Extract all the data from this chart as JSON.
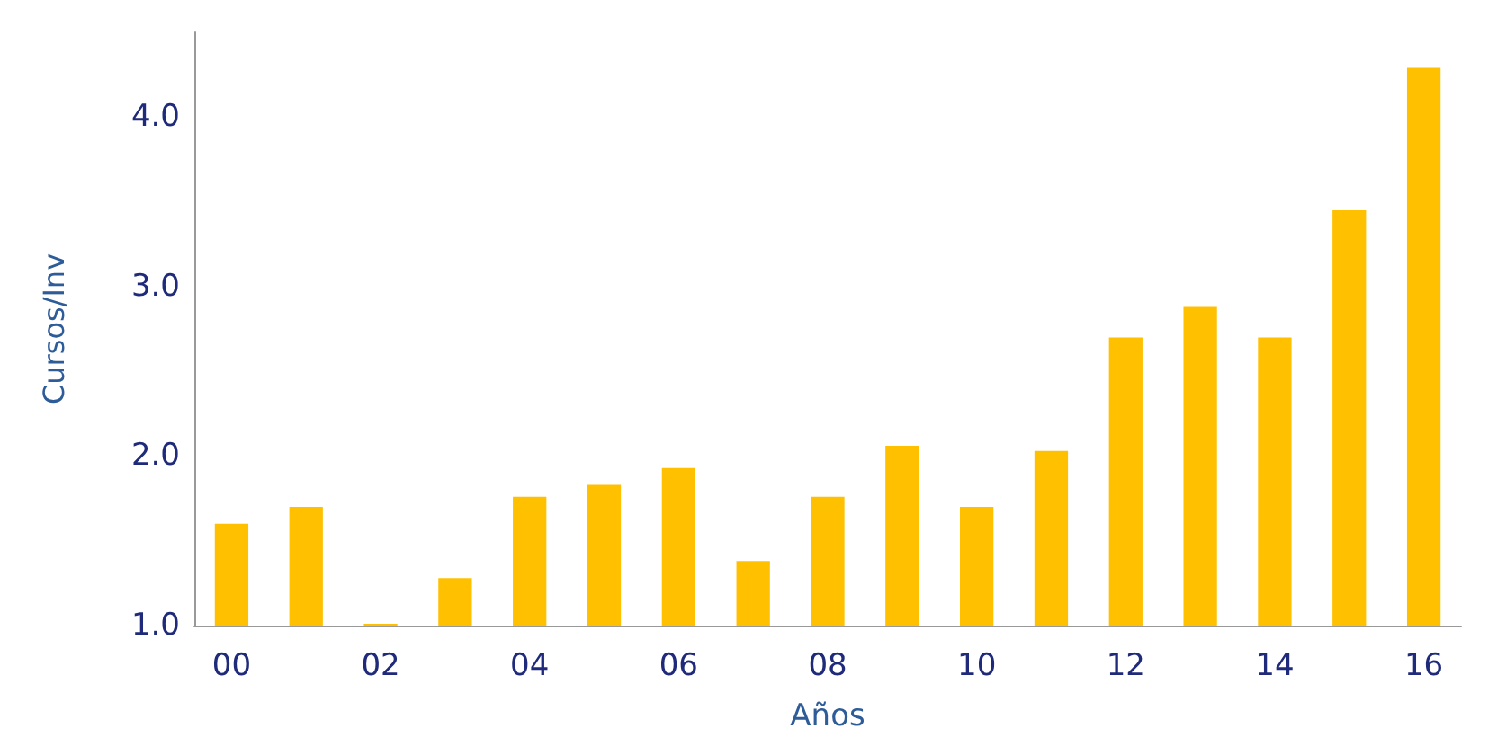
{
  "chart_data": {
    "type": "bar",
    "xlabel": "Años",
    "ylabel": "Cursos/Inv",
    "categories": [
      "00",
      null,
      "02",
      null,
      "04",
      null,
      "06",
      null,
      "08",
      null,
      "10",
      null,
      "12",
      null,
      "14",
      null,
      "16"
    ],
    "values": [
      1.6,
      1.7,
      1.01,
      1.28,
      1.76,
      1.83,
      1.93,
      1.38,
      1.76,
      2.06,
      1.7,
      2.03,
      2.7,
      2.88,
      2.7,
      3.45,
      4.29
    ],
    "color": "#ffc000",
    "ylim": [
      1,
      4.5
    ],
    "yticks": [
      {
        "value": 1,
        "label": "1.0"
      },
      {
        "value": 2,
        "label": "2.0"
      },
      {
        "value": 3,
        "label": "3.0"
      },
      {
        "value": 4,
        "label": "4.0"
      }
    ],
    "grid": false
  }
}
